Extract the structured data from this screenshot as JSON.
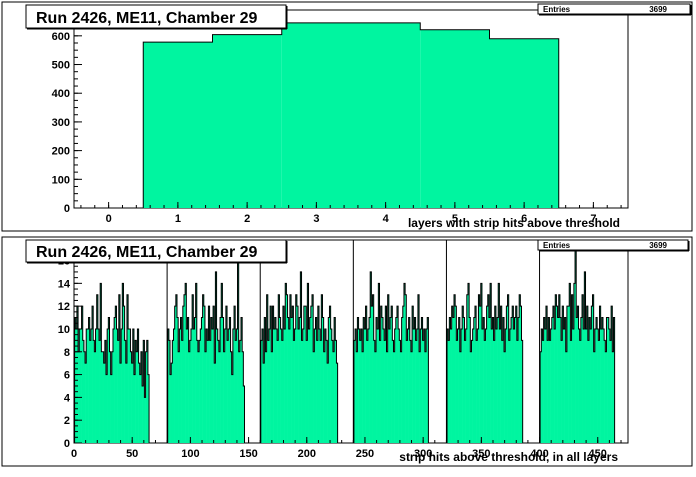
{
  "chart_data": [
    {
      "type": "bar",
      "title": "Run 2426, ME11, Chamber 29",
      "stats": {
        "label": "Entries",
        "value": "3699"
      },
      "xlabel": "layers with strip hits above threshold",
      "ylabel": "",
      "xlim": [
        -0.5,
        7.5
      ],
      "ylim": [
        0,
        690
      ],
      "xticks": [
        0,
        1,
        2,
        3,
        4,
        5,
        6,
        7
      ],
      "yticks": [
        0,
        100,
        200,
        300,
        400,
        500,
        600
      ],
      "grid": false,
      "fill_color": "#00f5a0",
      "bins": [
        {
          "lo": 0.5,
          "hi": 1.5,
          "value": 578
        },
        {
          "lo": 1.5,
          "hi": 2.5,
          "value": 604
        },
        {
          "lo": 2.5,
          "hi": 3.5,
          "value": 645
        },
        {
          "lo": 3.5,
          "hi": 4.5,
          "value": 645
        },
        {
          "lo": 4.5,
          "hi": 5.5,
          "value": 621
        },
        {
          "lo": 5.5,
          "hi": 6.5,
          "value": 590
        }
      ]
    },
    {
      "type": "bar",
      "title": "Run 2426, ME11, Chamber 29",
      "stats": {
        "label": "Entries",
        "value": "3699"
      },
      "xlabel": "strip hits above threshold, in all layers",
      "ylabel": "",
      "xlim": [
        0,
        476
      ],
      "ylim": [
        0,
        17.8
      ],
      "xticks": [
        0,
        50,
        100,
        150,
        200,
        250,
        300,
        350,
        400,
        450
      ],
      "yticks": [
        0,
        2,
        4,
        6,
        8,
        10,
        12,
        14,
        16
      ],
      "grid": false,
      "fill_color": "#00f5a0",
      "layer_separators": [
        80,
        160,
        240,
        320,
        400
      ],
      "groups": [
        {
          "start": 1,
          "values": [
            11,
            10,
            12,
            8,
            10,
            10,
            12,
            9,
            8,
            7,
            10,
            10,
            11,
            9,
            10,
            12,
            9,
            8,
            10,
            13,
            10,
            9,
            14,
            8,
            8,
            7,
            9,
            6,
            10,
            11,
            8,
            6,
            8,
            10,
            11,
            12,
            10,
            9,
            13,
            7,
            10,
            14,
            12,
            9,
            7,
            13,
            10,
            10,
            8,
            7,
            10,
            6,
            9,
            8,
            10,
            7,
            6,
            8,
            5,
            9,
            4,
            8,
            9,
            6
          ]
        },
        {
          "start": 81,
          "values": [
            10,
            9,
            6,
            7,
            9,
            10,
            12,
            13,
            11,
            8,
            10,
            11,
            9,
            12,
            13,
            14,
            10,
            11,
            8,
            9,
            10,
            13,
            10,
            11,
            14,
            9,
            8,
            9,
            10,
            11,
            13,
            12,
            8,
            10,
            9,
            12,
            9,
            11,
            10,
            12,
            7,
            15,
            10,
            9,
            8,
            11,
            14,
            11,
            8,
            10,
            12,
            9,
            10,
            11,
            8,
            6,
            10,
            12,
            9,
            10,
            17,
            8,
            9,
            11,
            8,
            5
          ]
        },
        {
          "start": 161,
          "values": [
            9,
            10,
            7,
            11,
            8,
            13,
            9,
            10,
            12,
            8,
            12,
            10,
            11,
            10,
            9,
            13,
            11,
            10,
            9,
            12,
            10,
            14,
            13,
            11,
            10,
            13,
            11,
            12,
            9,
            10,
            13,
            12,
            10,
            11,
            15,
            9,
            10,
            12,
            12,
            9,
            14,
            10,
            11,
            12,
            13,
            8,
            10,
            11,
            9,
            12,
            10,
            9,
            13,
            11,
            8,
            10,
            9,
            7,
            11,
            12,
            10,
            9,
            8,
            11,
            9,
            7
          ]
        },
        {
          "start": 241,
          "values": [
            9,
            10,
            8,
            11,
            10,
            9,
            10,
            8,
            11,
            10,
            12,
            9,
            10,
            11,
            15,
            12,
            13,
            9,
            8,
            11,
            10,
            14,
            9,
            12,
            11,
            10,
            9,
            12,
            8,
            13,
            10,
            11,
            12,
            9,
            8,
            10,
            11,
            12,
            10,
            9,
            8,
            11,
            12,
            14,
            13,
            9,
            10,
            11,
            9,
            8,
            12,
            10,
            11,
            9,
            10,
            13,
            8,
            10,
            11,
            9,
            10,
            8,
            10,
            11
          ]
        },
        {
          "start": 321,
          "values": [
            10,
            9,
            11,
            10,
            12,
            11,
            13,
            12,
            9,
            10,
            11,
            8,
            10,
            12,
            11,
            9,
            10,
            13,
            14,
            11,
            8,
            9,
            10,
            11,
            12,
            9,
            10,
            13,
            12,
            14,
            10,
            11,
            9,
            10,
            12,
            13,
            11,
            14,
            10,
            11,
            9,
            12,
            10,
            11,
            14,
            10,
            12,
            9,
            11,
            8,
            10,
            12,
            13,
            9,
            10,
            11,
            12,
            10,
            11,
            12,
            9,
            11,
            13,
            12,
            9
          ]
        },
        {
          "start": 401,
          "values": [
            8,
            10,
            9,
            11,
            10,
            12,
            9,
            11,
            9,
            10,
            11,
            12,
            10,
            13,
            12,
            11,
            13,
            11,
            9,
            12,
            10,
            11,
            8,
            12,
            12,
            14,
            9,
            13,
            10,
            14,
            17,
            11,
            12,
            10,
            9,
            11,
            13,
            10,
            15,
            10,
            12,
            9,
            11,
            10,
            12,
            13,
            8,
            10,
            11,
            10,
            9,
            12,
            10,
            11,
            10,
            9,
            8,
            11,
            11,
            10,
            9,
            12,
            8,
            11
          ]
        }
      ]
    }
  ]
}
